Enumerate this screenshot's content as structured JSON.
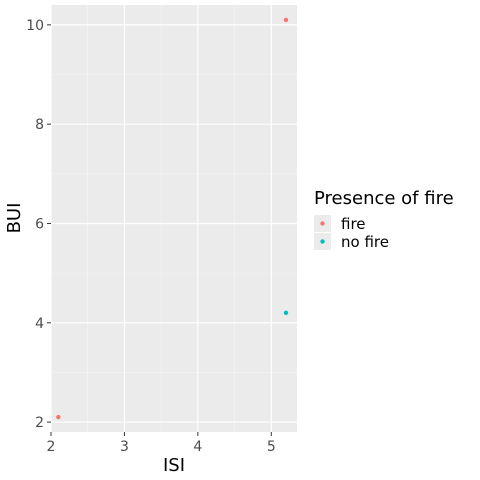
{
  "chart_data": {
    "type": "scatter",
    "xlabel": "ISI",
    "ylabel": "BUI",
    "xlim": [
      2.0,
      5.35
    ],
    "ylim": [
      1.8,
      10.4
    ],
    "x_ticks": [
      2,
      3,
      4,
      5
    ],
    "y_ticks": [
      2,
      4,
      6,
      8,
      10
    ],
    "grid": true,
    "legend": {
      "title": "Presence of fire",
      "placement": "right",
      "entries": [
        {
          "label": "fire",
          "color": "#F8766D"
        },
        {
          "label": "no fire",
          "color": "#00BFC4"
        }
      ]
    },
    "series": [
      {
        "name": "fire",
        "color": "#F8766D",
        "points": [
          {
            "x": 2.1,
            "y": 2.1
          },
          {
            "x": 5.2,
            "y": 10.1
          }
        ]
      },
      {
        "name": "no fire",
        "color": "#00BFC4",
        "points": [
          {
            "x": 5.2,
            "y": 4.2
          }
        ]
      }
    ]
  }
}
